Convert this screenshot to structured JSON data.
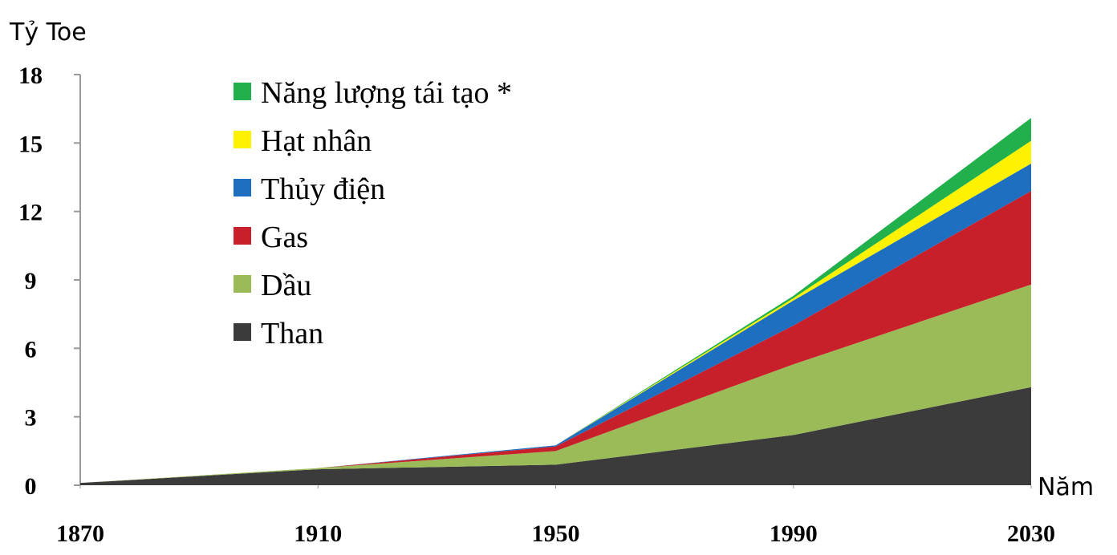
{
  "chart_data": {
    "type": "stacked_area",
    "ylabel": "Tỷ Toe",
    "xlabel": "Năm",
    "x": [
      1870,
      1910,
      1950,
      1990,
      2030
    ],
    "xlim": [
      1870,
      2030
    ],
    "xticks": [
      1870,
      1910,
      1950,
      1990,
      2030
    ],
    "ylim": [
      0,
      18
    ],
    "yticks": [
      0,
      3,
      6,
      9,
      12,
      15,
      18
    ],
    "legend": "upper left",
    "series": [
      {
        "name": "Than",
        "color": "#3b3b3b",
        "values": [
          0.1,
          0.7,
          0.9,
          2.2,
          4.3
        ]
      },
      {
        "name": "Dầu",
        "color": "#9bbb59",
        "values": [
          0,
          0.05,
          0.6,
          3.1,
          4.5
        ]
      },
      {
        "name": "Gas",
        "color": "#c8202a",
        "values": [
          0,
          0,
          0.2,
          1.7,
          4.1
        ]
      },
      {
        "name": "Thủy điện",
        "color": "#1f6fc1",
        "values": [
          0,
          0,
          0.05,
          1.1,
          1.2
        ]
      },
      {
        "name": "Hạt nhân",
        "color": "#fff200",
        "values": [
          0,
          0,
          0,
          0.1,
          1.0
        ]
      },
      {
        "name": "Năng lượng tái tạo *",
        "color": "#21b04b",
        "values": [
          0,
          0,
          0,
          0.1,
          1.0
        ]
      }
    ]
  }
}
